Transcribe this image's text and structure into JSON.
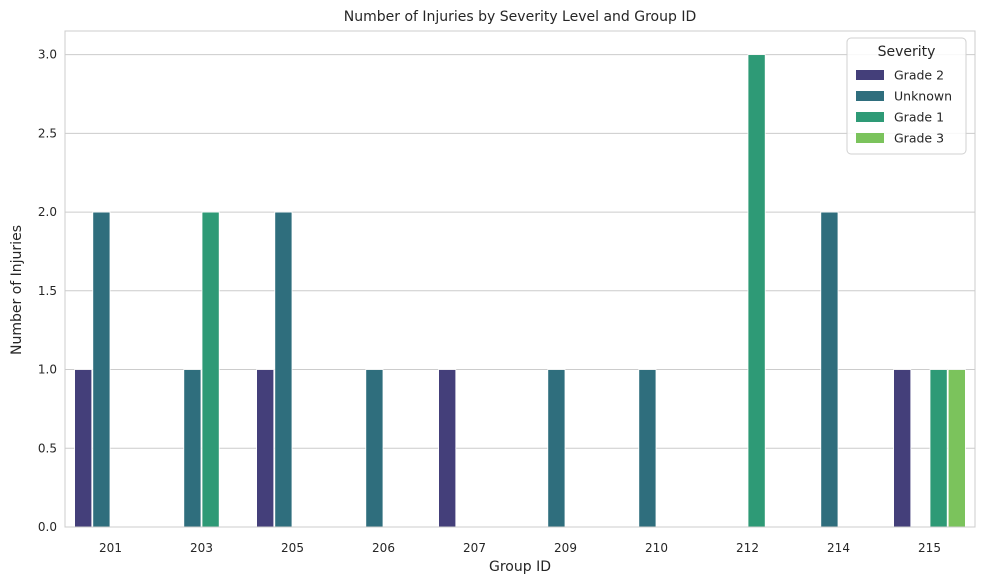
{
  "chart_data": {
    "type": "bar",
    "title": "Number of Injuries by Severity Level and Group ID",
    "xlabel": "Group ID",
    "ylabel": "Number of Injuries",
    "ylim": [
      0,
      3.15
    ],
    "yticks": [
      "0.0",
      "0.5",
      "1.0",
      "1.5",
      "2.0",
      "2.5",
      "3.0"
    ],
    "grid": "horizontal",
    "legend_title": "Severity",
    "legend_position": "top-right",
    "categories": [
      "201",
      "203",
      "205",
      "206",
      "207",
      "209",
      "210",
      "212",
      "214",
      "215"
    ],
    "series": [
      {
        "name": "Grade 2",
        "color": "#443f7a",
        "values": [
          1,
          0,
          1,
          0,
          1,
          0,
          0,
          0,
          0,
          1
        ]
      },
      {
        "name": "Unknown",
        "color": "#2f6e7d",
        "values": [
          2,
          1,
          2,
          1,
          0,
          1,
          1,
          0,
          2,
          0
        ]
      },
      {
        "name": "Grade 1",
        "color": "#2e9a76",
        "values": [
          0,
          2,
          0,
          0,
          0,
          0,
          0,
          3,
          0,
          1
        ]
      },
      {
        "name": "Grade 3",
        "color": "#7bc35c",
        "values": [
          0,
          0,
          0,
          0,
          0,
          0,
          0,
          0,
          0,
          1
        ]
      }
    ]
  }
}
